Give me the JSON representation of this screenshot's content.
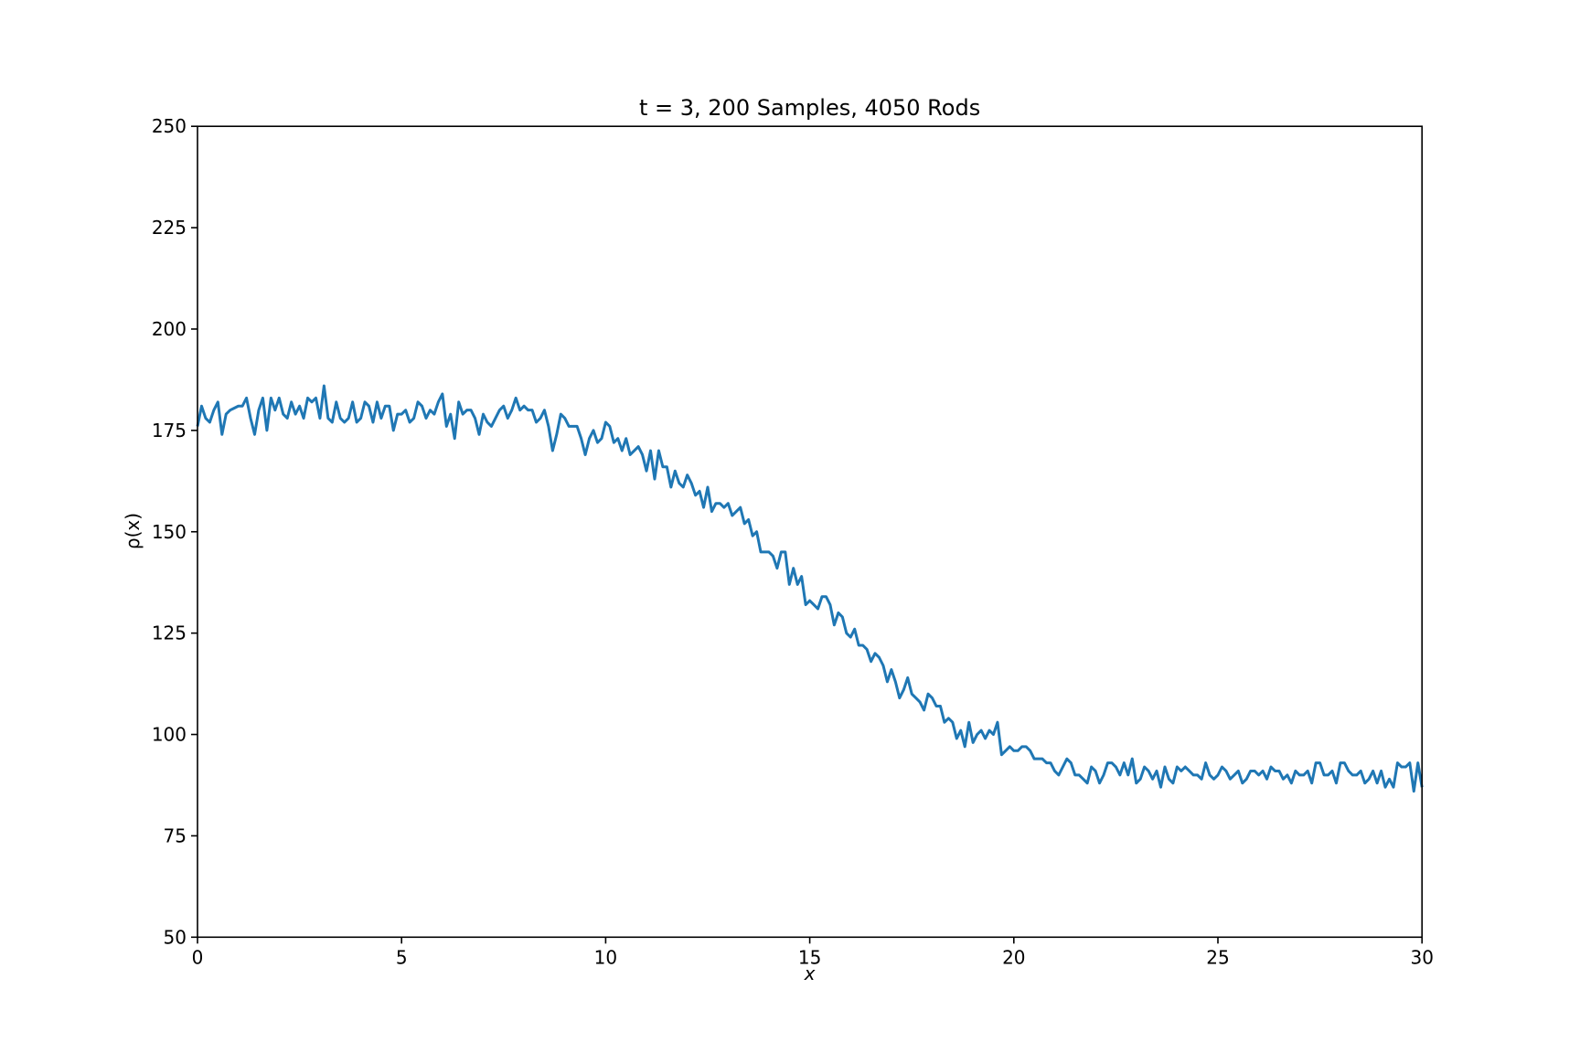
{
  "chart_data": {
    "type": "line",
    "title": "t = 3, 200 Samples, 4050 Rods",
    "x_label": "x",
    "y_label": "ρ(x)",
    "x": [
      0,
      0.1,
      0.2,
      0.3,
      0.4,
      0.5,
      0.6,
      0.7,
      0.8,
      0.9,
      1,
      1.1,
      1.2,
      1.3,
      1.4,
      1.5,
      1.6,
      1.7,
      1.8,
      1.9,
      2,
      2.1,
      2.2,
      2.3,
      2.4,
      2.5,
      2.6,
      2.7,
      2.8,
      2.9,
      3,
      3.1,
      3.2,
      3.3,
      3.4,
      3.5,
      3.6,
      3.7,
      3.8,
      3.9,
      4,
      4.1,
      4.2,
      4.3,
      4.4,
      4.5,
      4.6,
      4.7,
      4.8,
      4.9,
      5,
      5.1,
      5.2,
      5.3,
      5.4,
      5.5,
      5.6,
      5.7,
      5.8,
      5.9,
      6,
      6.1,
      6.2,
      6.3,
      6.4,
      6.5,
      6.6,
      6.7,
      6.8,
      6.9,
      7,
      7.1,
      7.2,
      7.3,
      7.4,
      7.5,
      7.6,
      7.7,
      7.8,
      7.9,
      8,
      8.1,
      8.2,
      8.3,
      8.4,
      8.5,
      8.6,
      8.7,
      8.8,
      8.9,
      9,
      9.1,
      9.2,
      9.3,
      9.4,
      9.5,
      9.6,
      9.7,
      9.8,
      9.9,
      10,
      10.1,
      10.2,
      10.3,
      10.4,
      10.5,
      10.6,
      10.7,
      10.8,
      10.9,
      11,
      11.1,
      11.2,
      11.3,
      11.4,
      11.5,
      11.6,
      11.7,
      11.8,
      11.9,
      12,
      12.1,
      12.2,
      12.3,
      12.4,
      12.5,
      12.6,
      12.7,
      12.8,
      12.9,
      13,
      13.1,
      13.2,
      13.3,
      13.4,
      13.5,
      13.6,
      13.7,
      13.8,
      13.9,
      14,
      14.1,
      14.2,
      14.3,
      14.4,
      14.5,
      14.6,
      14.7,
      14.8,
      14.9,
      15,
      15.1,
      15.2,
      15.3,
      15.4,
      15.5,
      15.6,
      15.7,
      15.8,
      15.9,
      16,
      16.1,
      16.2,
      16.3,
      16.4,
      16.5,
      16.6,
      16.7,
      16.8,
      16.9,
      17,
      17.1,
      17.2,
      17.3,
      17.4,
      17.5,
      17.6,
      17.7,
      17.8,
      17.9,
      18,
      18.1,
      18.2,
      18.3,
      18.4,
      18.5,
      18.6,
      18.7,
      18.8,
      18.9,
      19,
      19.1,
      19.2,
      19.3,
      19.4,
      19.5,
      19.6,
      19.7,
      19.8,
      19.9,
      20,
      20.1,
      20.2,
      20.3,
      20.4,
      20.5,
      20.6,
      20.7,
      20.8,
      20.9,
      21,
      21.1,
      21.2,
      21.3,
      21.4,
      21.5,
      21.6,
      21.7,
      21.8,
      21.9,
      22,
      22.1,
      22.2,
      22.3,
      22.4,
      22.5,
      22.6,
      22.7,
      22.8,
      22.9,
      23,
      23.1,
      23.2,
      23.3,
      23.4,
      23.5,
      23.6,
      23.7,
      23.8,
      23.9,
      24,
      24.1,
      24.2,
      24.3,
      24.4,
      24.5,
      24.6,
      24.7,
      24.8,
      24.9,
      25,
      25.1,
      25.2,
      25.3,
      25.4,
      25.5,
      25.6,
      25.7,
      25.8,
      25.9,
      26,
      26.1,
      26.2,
      26.3,
      26.4,
      26.5,
      26.6,
      26.7,
      26.8,
      26.9,
      27,
      27.1,
      27.2,
      27.3,
      27.4,
      27.5,
      27.6,
      27.7,
      27.8,
      27.9,
      28,
      28.1,
      28.2,
      28.3,
      28.4,
      28.5,
      28.6,
      28.7,
      28.8,
      28.9,
      29,
      29.1,
      29.2,
      29.3,
      29.4,
      29.5,
      29.6,
      29.7,
      29.8,
      29.9,
      30
    ],
    "series": [
      {
        "color": "#1f77b4",
        "values": [
          176,
          181,
          178,
          177,
          180,
          182,
          174,
          179,
          180,
          180.5,
          181,
          181,
          183,
          178,
          174,
          180,
          183,
          175,
          183,
          180,
          183,
          179,
          178,
          182,
          179,
          181,
          178,
          183,
          182,
          183,
          178,
          186,
          178,
          177,
          182,
          178,
          177,
          178,
          182,
          177,
          178,
          182,
          181,
          177,
          182,
          178,
          181,
          181,
          175,
          179,
          179,
          180,
          177,
          178,
          182,
          181,
          178,
          180,
          179,
          182,
          184,
          176,
          179,
          173,
          182,
          179,
          180,
          180,
          178,
          174,
          179,
          177,
          176,
          178,
          180,
          181,
          178,
          180,
          183,
          180,
          181,
          180,
          180,
          177,
          178,
          180,
          176,
          170,
          174,
          179,
          178,
          176,
          176,
          176,
          173,
          169,
          173,
          175,
          172,
          173,
          177,
          176,
          172,
          173,
          170,
          173,
          169,
          170,
          171,
          169,
          165,
          170,
          163,
          170,
          166,
          166,
          161,
          165,
          162,
          161,
          164,
          162,
          159,
          160,
          156,
          161,
          155,
          157,
          157,
          156,
          157,
          154,
          155,
          156,
          152,
          153,
          149,
          150,
          145,
          145,
          145,
          144,
          141,
          145,
          145,
          137,
          141,
          137,
          139,
          132,
          133,
          132,
          131,
          134,
          134,
          132,
          127,
          130,
          129,
          125,
          124,
          126,
          122,
          122,
          121,
          118,
          120,
          119,
          117,
          113,
          116,
          113,
          109,
          111,
          114,
          110,
          109,
          108,
          106,
          110,
          109,
          107,
          107,
          103,
          104,
          103,
          99,
          101,
          97,
          103,
          98,
          100,
          101,
          99,
          101,
          100,
          103,
          95,
          96,
          97,
          96,
          96,
          97,
          97,
          96,
          94,
          94,
          94,
          93,
          93,
          91,
          90,
          92,
          94,
          93,
          90,
          90,
          89,
          88,
          92,
          91,
          88,
          90,
          93,
          93,
          92,
          90,
          93,
          90,
          94,
          88,
          89,
          92,
          91,
          89,
          91,
          87,
          92,
          89,
          88,
          92,
          91,
          92,
          91,
          90,
          90,
          89,
          93,
          90,
          89,
          90,
          92,
          91,
          89,
          90,
          91,
          88,
          89,
          91,
          91,
          90,
          91,
          89,
          92,
          91,
          91,
          89,
          90,
          88,
          91,
          90,
          90,
          91,
          88,
          93,
          93,
          90,
          90,
          91,
          88,
          93,
          93,
          91,
          90,
          90,
          91,
          88,
          89,
          91,
          88,
          91,
          87,
          89,
          87,
          93,
          92,
          92,
          93,
          86,
          93,
          87
        ]
      }
    ],
    "xlim": [
      0,
      30
    ],
    "ylim": [
      50,
      250
    ],
    "xticks": [
      0,
      5,
      10,
      15,
      20,
      25,
      30
    ],
    "yticks": [
      50,
      75,
      100,
      125,
      150,
      175,
      200,
      225,
      250
    ]
  }
}
